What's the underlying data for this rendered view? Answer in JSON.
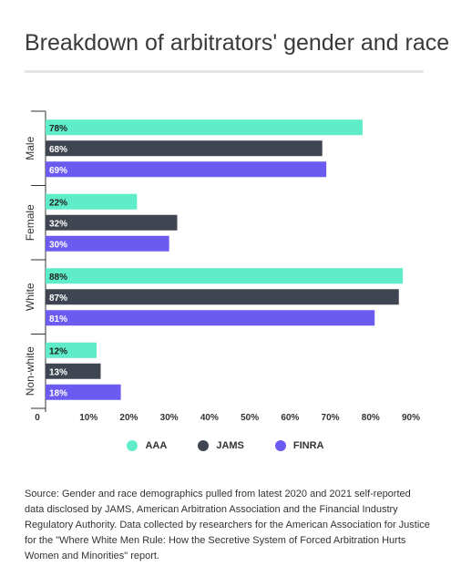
{
  "chart_data": {
    "type": "bar",
    "orientation": "horizontal",
    "title": "Breakdown of arbitrators' gender and race",
    "categories": [
      "Male",
      "Female",
      "White",
      "Non-white"
    ],
    "series": [
      {
        "name": "AAA",
        "color": "#5fecc8",
        "values": [
          78,
          22,
          88,
          12
        ],
        "labels": [
          "78%",
          "22%",
          "88%",
          "12%"
        ]
      },
      {
        "name": "JAMS",
        "color": "#3f4651",
        "values": [
          68,
          32,
          87,
          13
        ],
        "labels": [
          "68%",
          "32%",
          "87%",
          "13%"
        ]
      },
      {
        "name": "FINRA",
        "color": "#6c5bf0",
        "values": [
          69,
          30,
          81,
          18
        ],
        "labels": [
          "69%",
          "30%",
          "81%",
          "18%"
        ]
      }
    ],
    "x_ticks": [
      "0",
      "10%",
      "20%",
      "30%",
      "40%",
      "50%",
      "60%",
      "70%",
      "80%",
      "90%"
    ],
    "xlim": [
      0,
      90
    ],
    "grid": false,
    "legend_position": "bottom"
  },
  "source_text": "Source: Gender and race demographics pulled from latest 2020 and 2021 self-reported data disclosed by JAMS, American Arbitration Association and the Financial Industry Regulatory Authority. Data collected by researchers for the American Association for Justice for the \"Where White Men Rule: How the Secretive System of Forced Arbitration Hurts Women and Minorities\" report."
}
